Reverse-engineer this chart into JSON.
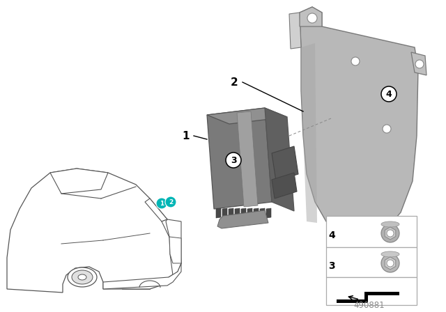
{
  "background_color": "#ffffff",
  "line_color": "#000000",
  "teal_color": "#00b5b5",
  "diagram_number": "490881",
  "car_edge_color": "#555555",
  "part_gray_light": "#b0b0b0",
  "part_gray_mid": "#888888",
  "part_gray_dark": "#666666",
  "part_gray_darker": "#505050",
  "bracket_light": "#b8b8b8",
  "bracket_mid": "#999999",
  "bracket_dark": "#787878"
}
